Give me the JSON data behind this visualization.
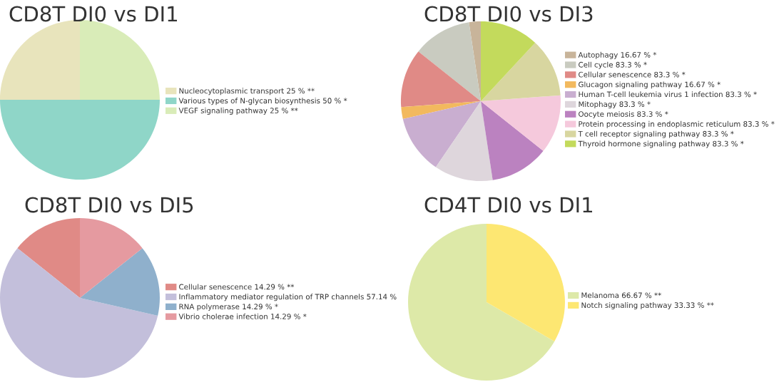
{
  "chart_data": [
    {
      "type": "pie",
      "title": "CD8T DI0 vs DI1",
      "legend": "right",
      "categories": [
        "Nucleocytoplasmic transport 25 % **",
        "Various types of N-glycan biosynthesis 50 % *",
        "VEGF signaling pathway 25 % **"
      ],
      "values": [
        25,
        50,
        25
      ],
      "colors": [
        "#e8e4bc",
        "#8fd6c8",
        "#d9ecb8"
      ]
    },
    {
      "type": "pie",
      "title": "CD8T DI0 vs DI3",
      "legend": "right",
      "categories": [
        "Autophagy 16.67 % *",
        "Cell cycle 83.3 % *",
        "Cellular senescence 83.3 % *",
        "Glucagon signaling pathway 16.67 % *",
        "Human T-cell leukemia virus 1 infection 83.3 % *",
        "Mitophagy 83.3 % *",
        "Oocyte meiosis 83.3 % *",
        "Protein processing in endoplasmic reticulum 83.3 % *",
        "T cell receptor signaling pathway 83.3 % *",
        "Thyroid hormone signaling pathway 83.3 % *"
      ],
      "values": [
        16.67,
        83.3,
        83.3,
        16.67,
        83.3,
        83.3,
        83.3,
        83.3,
        83.3,
        83.3
      ],
      "colors": [
        "#c8b49a",
        "#c9cbc0",
        "#e08a86",
        "#f2b95e",
        "#c9aed0",
        "#ded6dc",
        "#bb82c0",
        "#f5c9dc",
        "#d8d6a0",
        "#c3da5c"
      ]
    },
    {
      "type": "pie",
      "title": "CD8T DI0 vs DI5",
      "legend": "right",
      "categories": [
        "Cellular senescence 14.29 % **",
        "Inflammatory mediator regulation of TRP channels 57.14 %",
        "RNA polymerase 14.29 % *",
        "Vibrio cholerae infection 14.29 % *"
      ],
      "values": [
        14.29,
        57.14,
        14.29,
        14.29
      ],
      "colors": [
        "#e08a86",
        "#c3bfdb",
        "#8fb0cc",
        "#e59aa0"
      ]
    },
    {
      "type": "pie",
      "title": "CD4T DI0 vs DI1",
      "legend": "right",
      "categories": [
        "Melanoma 66.67 % **",
        "Notch signaling pathway 33.33 % **"
      ],
      "values": [
        66.67,
        33.33
      ],
      "colors": [
        "#dde9a8",
        "#fde772"
      ]
    }
  ]
}
